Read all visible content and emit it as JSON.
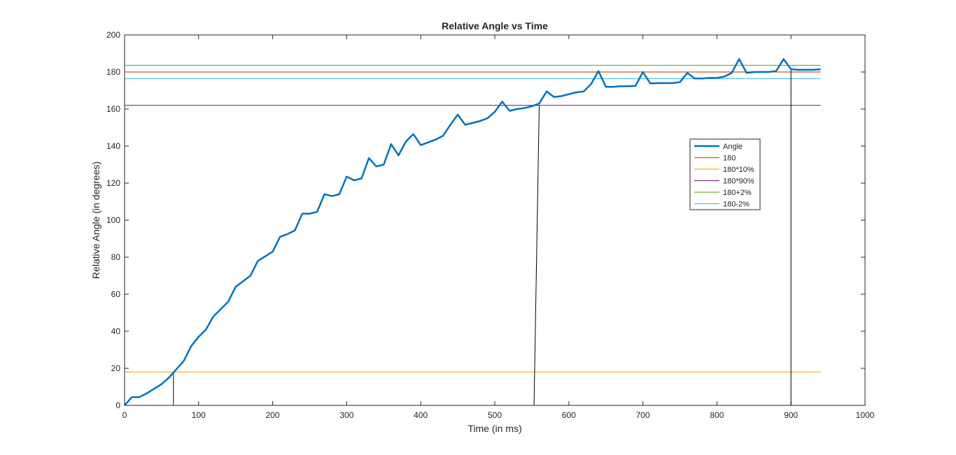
{
  "chart_data": {
    "type": "line",
    "title": "Relative Angle vs Time",
    "xlabel": "Time (in ms)",
    "ylabel": "Relative Angle (in degrees)",
    "xlim": [
      0,
      1000
    ],
    "ylim": [
      0,
      200
    ],
    "xticks": [
      0,
      100,
      200,
      300,
      400,
      500,
      600,
      700,
      800,
      900,
      1000
    ],
    "yticks": [
      0,
      20,
      40,
      60,
      80,
      100,
      120,
      140,
      160,
      180,
      200
    ],
    "grid": false,
    "legend_position": "upper-right-inside",
    "series": [
      {
        "name": "Angle",
        "color": "#0072BD",
        "x": [
          0,
          10,
          20,
          30,
          40,
          50,
          60,
          70,
          80,
          90,
          100,
          110,
          120,
          130,
          140,
          150,
          160,
          170,
          180,
          190,
          200,
          210,
          220,
          230,
          240,
          250,
          260,
          270,
          280,
          290,
          300,
          310,
          320,
          330,
          340,
          350,
          360,
          370,
          380,
          390,
          400,
          410,
          420,
          430,
          440,
          450,
          460,
          470,
          480,
          490,
          500,
          510,
          520,
          530,
          540,
          550,
          560,
          570,
          580,
          590,
          600,
          610,
          620,
          630,
          640,
          650,
          660,
          670,
          680,
          690,
          700,
          710,
          720,
          730,
          740,
          750,
          760,
          770,
          780,
          790,
          800,
          810,
          820,
          830,
          840,
          850,
          860,
          870,
          880,
          890,
          900,
          910,
          920,
          930,
          940
        ],
        "y": [
          0,
          4.5,
          4.5,
          6.5,
          9,
          11.5,
          15,
          19.5,
          24,
          32,
          37,
          41,
          48,
          52,
          56,
          64,
          67,
          70,
          78,
          80.5,
          83,
          91,
          92.5,
          94.5,
          103.5,
          103.5,
          104.5,
          114,
          113,
          114,
          123.5,
          121.5,
          122.5,
          133.5,
          129,
          130,
          141,
          135,
          142.5,
          146.5,
          140.5,
          142,
          143.5,
          145.5,
          151.5,
          157,
          151.5,
          152.5,
          153.5,
          155,
          158.5,
          164,
          159,
          160,
          160.5,
          161.5,
          163,
          169.5,
          166.5,
          167,
          168,
          169,
          169.5,
          173.5,
          180.5,
          172,
          172,
          172.3,
          172.3,
          172.5,
          180,
          173.8,
          174,
          174,
          174,
          174.5,
          179.5,
          176.5,
          176.5,
          176.8,
          176.8,
          177.5,
          179.5,
          187,
          179.5,
          180,
          180,
          180,
          180.5,
          187,
          181.5,
          181.2,
          181.2,
          181.2,
          181.5
        ]
      },
      {
        "name": "180",
        "color": "#D95319",
        "x": [
          0,
          940
        ],
        "y": [
          180,
          180
        ]
      },
      {
        "name": "180*10%",
        "color": "#EDB120",
        "x": [
          0,
          940
        ],
        "y": [
          18,
          18
        ]
      },
      {
        "name": "180*90%",
        "color": "#7E2F8E",
        "x": [
          0,
          940
        ],
        "y": [
          162,
          162
        ]
      },
      {
        "name": "180+2%",
        "color": "#77AC30",
        "x": [
          0,
          940
        ],
        "y": [
          183.6,
          183.6
        ]
      },
      {
        "name": "180-2%",
        "color": "#4DBEEE",
        "x": [
          0,
          940
        ],
        "y": [
          176.4,
          176.4
        ]
      }
    ],
    "annotations": [
      {
        "type": "drop-line",
        "color": "#000000",
        "x": [
          66,
          66
        ],
        "y": [
          0,
          18
        ]
      },
      {
        "type": "drop-line",
        "color": "#000000",
        "x": [
          553,
          560
        ],
        "y": [
          0,
          162
        ]
      },
      {
        "type": "drop-line",
        "color": "#000000",
        "x": [
          900,
          900
        ],
        "y": [
          0,
          181.5
        ]
      }
    ]
  }
}
